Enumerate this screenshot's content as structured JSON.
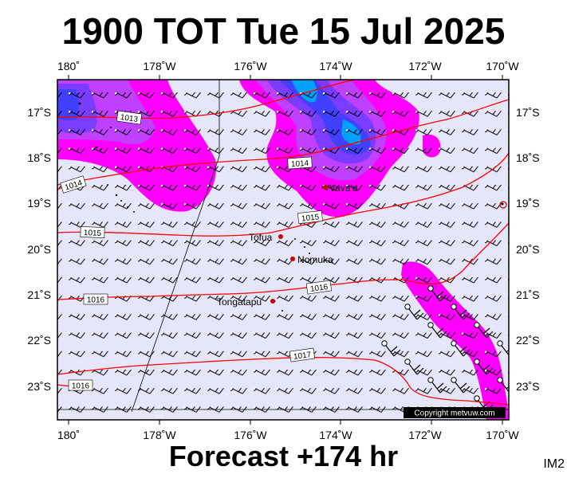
{
  "title": "1900 TOT Tue 15 Jul 2025",
  "subtitle": "Forecast +174 hr",
  "model": "IM2",
  "copyright": "Copyright metvuw.com",
  "colors": {
    "background": "#e6e6fa",
    "isobar": "#ff0000",
    "precip_light": "#ff00ff",
    "precip_mid": "#a040ff",
    "precip_heavy": "#4040ff",
    "precip_extreme": "#00a0ff",
    "place_marker": "#cc0000"
  },
  "longitude_labels": [
    "180˚",
    "178˚W",
    "176˚W",
    "174˚W",
    "172˚W",
    "170˚W"
  ],
  "latitude_labels": [
    "17˚S",
    "18˚S",
    "19˚S",
    "20˚S",
    "21˚S",
    "22˚S",
    "23˚S"
  ],
  "isobars": [
    "1013",
    "1014",
    "1014",
    "1015",
    "1015",
    "1016",
    "1016",
    "1017",
    "1016"
  ],
  "places": [
    "Vava'u",
    "Tofua",
    "Nomuka",
    "Tongatapu"
  ],
  "wind_barbs": "station circles with wind barbs on regular grid (0.6° spacing)",
  "precip_legend": "magenta/purple/blue shading = rainfall"
}
